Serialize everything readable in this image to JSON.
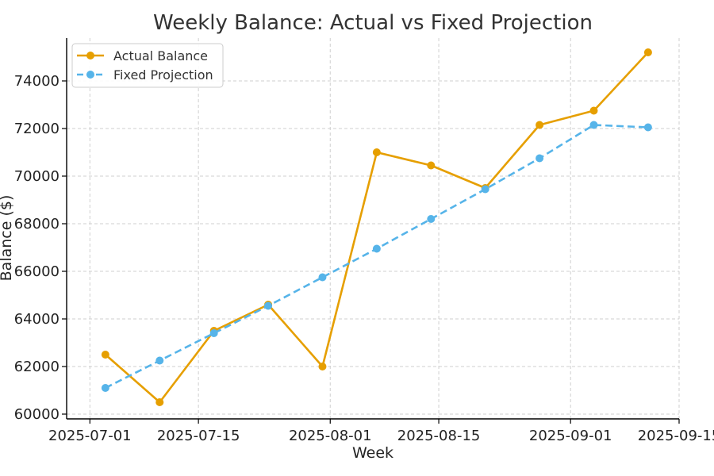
{
  "chart_data": {
    "type": "line",
    "title": "Weekly Balance: Actual vs Fixed Projection",
    "xlabel": "Week",
    "ylabel": "Balance ($)",
    "x": [
      "2025-07-03",
      "2025-07-10",
      "2025-07-17",
      "2025-07-24",
      "2025-07-31",
      "2025-08-07",
      "2025-08-14",
      "2025-08-21",
      "2025-08-28",
      "2025-09-04",
      "2025-09-11"
    ],
    "x_ticks": [
      "2025-07-01",
      "2025-07-15",
      "2025-08-01",
      "2025-08-15",
      "2025-09-01",
      "2025-09-15"
    ],
    "y_ticks": [
      60000,
      62000,
      64000,
      66000,
      68000,
      70000,
      72000,
      74000
    ],
    "xlim": [
      "2025-06-28",
      "2025-09-15"
    ],
    "ylim": [
      59800,
      75800
    ],
    "grid": true,
    "legend_position": "upper-left",
    "series": [
      {
        "name": "Actual Balance",
        "color": "#E69F00",
        "line_style": "solid",
        "values": [
          62500,
          60500,
          63500,
          64600,
          62000,
          71000,
          70450,
          69500,
          72150,
          72750,
          75200
        ]
      },
      {
        "name": "Fixed Projection",
        "color": "#56B4E9",
        "line_style": "dashed",
        "values": [
          61100,
          62250,
          63400,
          64550,
          65750,
          66950,
          68200,
          69450,
          70750,
          72150,
          72050
        ]
      }
    ]
  }
}
